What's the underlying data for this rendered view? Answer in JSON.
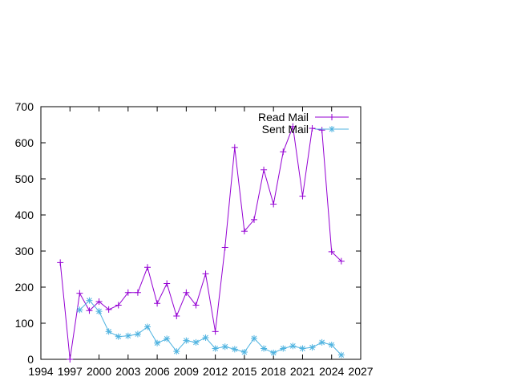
{
  "chart_data": {
    "type": "line",
    "title": "",
    "xlabel": "",
    "ylabel": "",
    "xlim": [
      1994,
      2027
    ],
    "ylim": [
      0,
      700
    ],
    "x_ticks": [
      1994,
      1997,
      2000,
      2003,
      2006,
      2009,
      2012,
      2015,
      2018,
      2021,
      2024,
      2027
    ],
    "y_ticks": [
      0,
      100,
      200,
      300,
      400,
      500,
      600,
      700
    ],
    "grid": false,
    "legend_position": "top-right",
    "series": [
      {
        "name": "Read Mail",
        "color": "#9400d3",
        "marker": "plus",
        "x": [
          1996,
          1997,
          1998,
          1999,
          2000,
          2001,
          2002,
          2003,
          2004,
          2005,
          2006,
          2007,
          2008,
          2009,
          2010,
          2011,
          2012,
          2013,
          2014,
          2015,
          2016,
          2017,
          2018,
          2019,
          2020,
          2021,
          2022,
          2023,
          2024,
          2025
        ],
        "values": [
          268,
          0,
          183,
          135,
          160,
          138,
          150,
          185,
          185,
          255,
          155,
          210,
          120,
          185,
          150,
          237,
          77,
          310,
          587,
          355,
          387,
          525,
          430,
          575,
          645,
          452,
          640,
          635,
          298,
          272
        ]
      },
      {
        "name": "Sent Mail",
        "color": "#4fb3e0",
        "marker": "star",
        "x": [
          1998,
          1999,
          2000,
          2001,
          2002,
          2003,
          2004,
          2005,
          2006,
          2007,
          2008,
          2009,
          2010,
          2011,
          2012,
          2013,
          2014,
          2015,
          2016,
          2017,
          2018,
          2019,
          2020,
          2021,
          2022,
          2023,
          2024,
          2025
        ],
        "values": [
          137,
          163,
          133,
          77,
          63,
          65,
          70,
          90,
          45,
          57,
          22,
          52,
          47,
          60,
          30,
          35,
          28,
          20,
          58,
          30,
          18,
          30,
          37,
          30,
          33,
          47,
          40,
          12
        ]
      }
    ]
  }
}
